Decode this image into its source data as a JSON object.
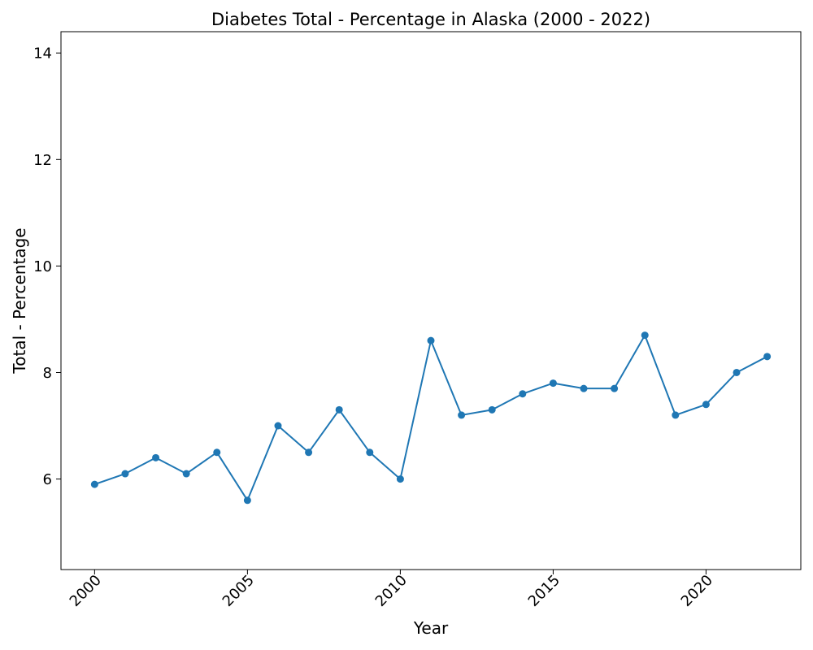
{
  "chart_data": {
    "type": "line",
    "title": "Diabetes Total - Percentage in Alaska (2000 - 2022)",
    "xlabel": "Year",
    "ylabel": "Total - Percentage",
    "xlim": [
      1998.9,
      2023.1
    ],
    "ylim": [
      4.3,
      14.4
    ],
    "xticks": [
      2000,
      2005,
      2010,
      2015,
      2020
    ],
    "yticks": [
      6,
      8,
      10,
      12,
      14
    ],
    "grid": false,
    "legend": "none",
    "series": [
      {
        "color": "#1f77b4",
        "x": [
          2000,
          2001,
          2002,
          2003,
          2004,
          2005,
          2006,
          2007,
          2008,
          2009,
          2010,
          2011,
          2012,
          2013,
          2014,
          2015,
          2016,
          2017,
          2018,
          2019,
          2020,
          2021,
          2022
        ],
        "y": [
          5.9,
          6.1,
          6.4,
          6.1,
          6.5,
          5.6,
          7.0,
          6.5,
          7.3,
          6.5,
          6.0,
          8.6,
          7.2,
          7.3,
          7.6,
          7.8,
          7.7,
          7.7,
          8.7,
          7.2,
          7.4,
          8.0,
          8.3
        ]
      }
    ]
  }
}
